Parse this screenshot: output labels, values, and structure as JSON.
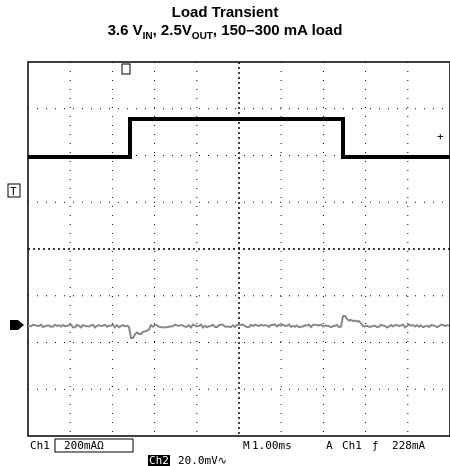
{
  "header": {
    "title": "Load Transient",
    "subtitle": {
      "part1": "3.6 V",
      "sub1": "IN",
      "part2": ", 2.5V",
      "sub2": "OUT",
      "part3": ", 150–300 mA load"
    }
  },
  "screen": {
    "trigger_marker": "T",
    "status": {
      "ch1": "Ch1",
      "ch1_scale": "200mAΩ",
      "m": "M",
      "timebase": "1.00ms",
      "a": "A",
      "trig_ch": "Ch1",
      "trig_level": "228mA",
      "ch2": "Ch2",
      "ch2_scale": "20.0mV∿"
    }
  }
}
